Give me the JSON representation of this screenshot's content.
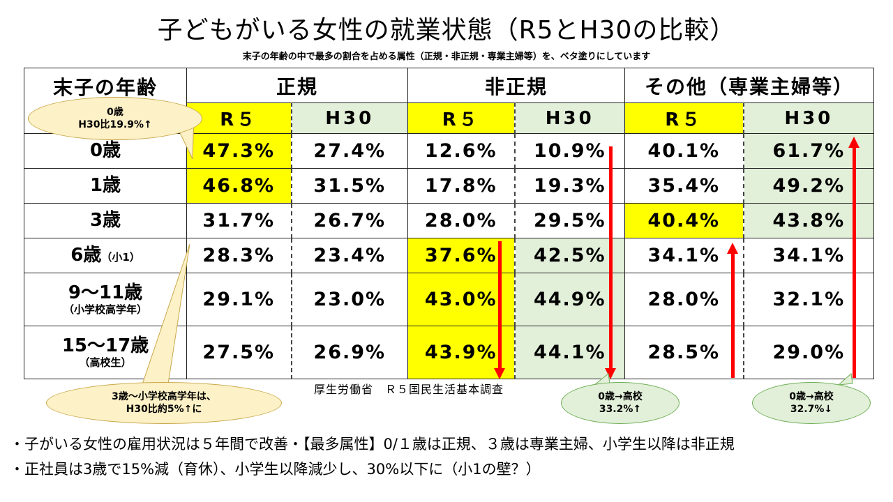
{
  "title": "子どもがいる女性の就業状態（R5とH30の比較）",
  "subtitle": "末子の年齢の中で最多の割合を占める属性（正規・非正規・専業主婦等）を、ベタ塗りにしています",
  "table": {
    "age_header": "末子の年齢",
    "groups": [
      "正規",
      "非正規",
      "その他（専業主婦等）"
    ],
    "subheaders": [
      "R５",
      "H30",
      "R５",
      "H30",
      "R５",
      "H30"
    ],
    "rows": [
      {
        "age": "0歳",
        "note": "",
        "values": [
          "47.3%",
          "27.4%",
          "12.6%",
          "10.9%",
          "40.1%",
          "61.7%"
        ]
      },
      {
        "age": "1歳",
        "note": "",
        "values": [
          "46.8%",
          "31.5%",
          "17.8%",
          "19.3%",
          "35.4%",
          "49.2%"
        ]
      },
      {
        "age": "3歳",
        "note": "",
        "values": [
          "31.7%",
          "26.7%",
          "28.0%",
          "29.5%",
          "40.4%",
          "43.8%"
        ]
      },
      {
        "age": "6歳",
        "note": "（小1）",
        "values": [
          "28.3%",
          "23.4%",
          "37.6%",
          "42.5%",
          "34.1%",
          "34.1%"
        ]
      },
      {
        "age": "9～11歳",
        "note": "（小学校高学年）",
        "values": [
          "29.1%",
          "23.0%",
          "43.0%",
          "44.9%",
          "28.0%",
          "32.1%"
        ]
      },
      {
        "age": "15～17歳",
        "note": "（高校生）",
        "values": [
          "27.5%",
          "26.9%",
          "43.9%",
          "44.1%",
          "28.5%",
          "29.0%"
        ]
      }
    ]
  },
  "callouts": {
    "top_left_line1": "0歳",
    "top_left_line2": "H30比19.9%↑",
    "bottom_left_line1": "3歳～小学校高学年は、",
    "bottom_left_line2": "H30比約5%↑に",
    "nonregular_line1": "0歳→高校",
    "nonregular_line2": "33.2%↑",
    "other_line1": "0歳→高校",
    "other_line2": "32.7%↓"
  },
  "source": "厚生労働省　Ｒ５国民生活基本調査",
  "bullets": [
    "・子がいる女性の雇用状況は５年間で改善・【最多属性】0/１歳は正規、３歳は専業主婦、小学生以降は非正規",
    "・正社員は3歳で15%減（育休）、小学生以降減少し、30%以下に（小1の壁？）"
  ],
  "colors": {
    "highlight": "#ffff00",
    "h30_shade": "#e2efd9",
    "arrow": "#ff0000"
  }
}
